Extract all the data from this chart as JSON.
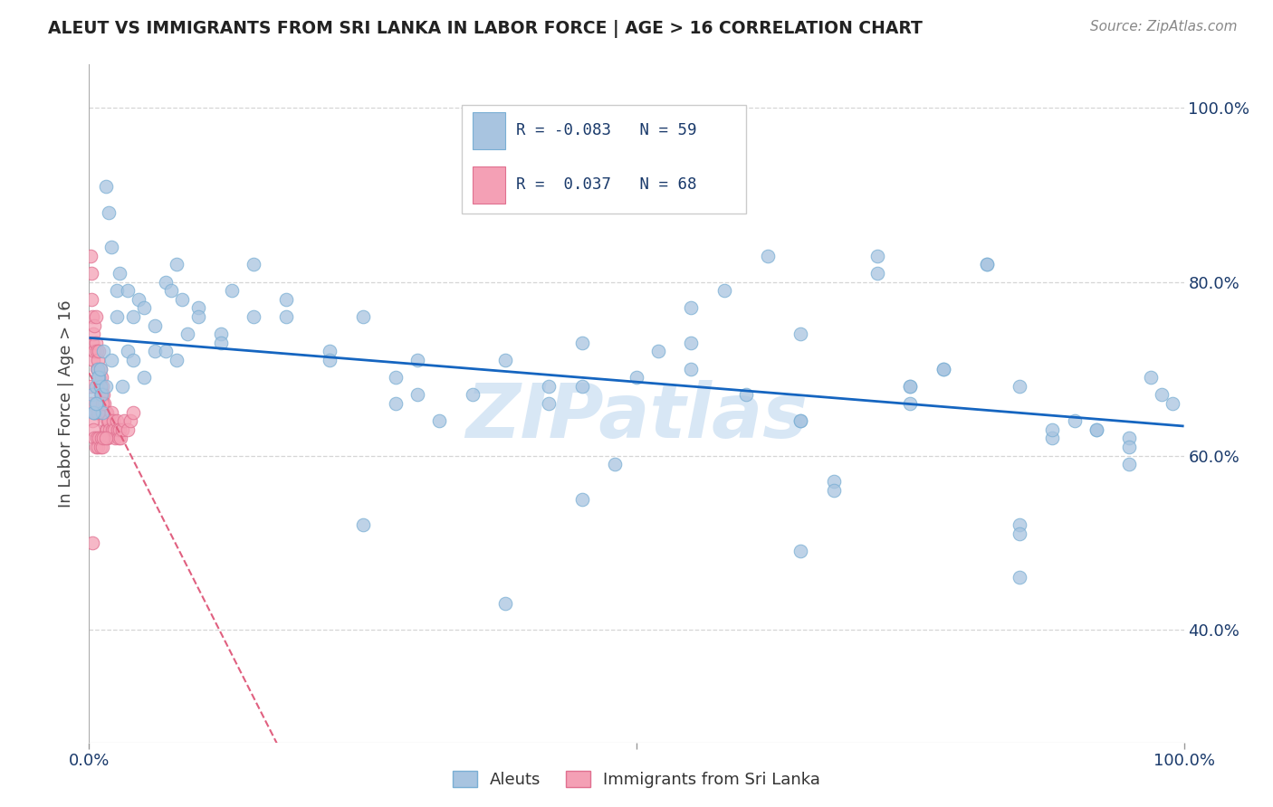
{
  "title": "ALEUT VS IMMIGRANTS FROM SRI LANKA IN LABOR FORCE | AGE > 16 CORRELATION CHART",
  "source": "Source: ZipAtlas.com",
  "ylabel": "In Labor Force | Age > 16",
  "xlim": [
    0.0,
    1.0
  ],
  "ylim": [
    0.27,
    1.05
  ],
  "aleuts_color": "#a8c4e0",
  "aleuts_edge_color": "#7aafd4",
  "aleuts_line_color": "#1565c0",
  "sri_lanka_color": "#f4a0b5",
  "sri_lanka_edge_color": "#e07090",
  "sri_lanka_line_color": "#e06080",
  "legend_color": "#1a3a6b",
  "watermark": "ZIPatlas",
  "grid_color": "#cccccc",
  "aleuts_x": [
    0.003,
    0.005,
    0.006,
    0.007,
    0.008,
    0.009,
    0.01,
    0.011,
    0.012,
    0.013,
    0.015,
    0.018,
    0.02,
    0.025,
    0.028,
    0.035,
    0.04,
    0.045,
    0.05,
    0.06,
    0.07,
    0.075,
    0.08,
    0.085,
    0.09,
    0.1,
    0.12,
    0.13,
    0.15,
    0.18,
    0.22,
    0.25,
    0.28,
    0.3,
    0.35,
    0.38,
    0.42,
    0.45,
    0.5,
    0.55,
    0.58,
    0.62,
    0.65,
    0.68,
    0.72,
    0.75,
    0.78,
    0.82,
    0.85,
    0.88,
    0.9,
    0.92,
    0.95,
    0.97,
    0.99,
    0.25,
    0.45,
    0.65,
    0.85
  ],
  "aleuts_y": [
    0.67,
    0.65,
    0.68,
    0.66,
    0.7,
    0.69,
    0.68,
    0.67,
    0.65,
    0.72,
    0.91,
    0.88,
    0.84,
    0.79,
    0.81,
    0.79,
    0.76,
    0.78,
    0.77,
    0.75,
    0.8,
    0.79,
    0.82,
    0.78,
    0.74,
    0.77,
    0.74,
    0.79,
    0.82,
    0.78,
    0.72,
    0.76,
    0.69,
    0.71,
    0.67,
    0.71,
    0.68,
    0.73,
    0.69,
    0.77,
    0.79,
    0.83,
    0.64,
    0.57,
    0.83,
    0.68,
    0.7,
    0.82,
    0.52,
    0.62,
    0.64,
    0.63,
    0.62,
    0.69,
    0.66,
    0.52,
    0.55,
    0.49,
    0.46
  ],
  "aleuts_x2": [
    0.004,
    0.006,
    0.008,
    0.01,
    0.015,
    0.02,
    0.025,
    0.03,
    0.035,
    0.04,
    0.05,
    0.06,
    0.07,
    0.08,
    0.1,
    0.12,
    0.15,
    0.18,
    0.22,
    0.28,
    0.32,
    0.38,
    0.42,
    0.48,
    0.52,
    0.55,
    0.6,
    0.65,
    0.68,
    0.72,
    0.75,
    0.78,
    0.82,
    0.85,
    0.88,
    0.92,
    0.95,
    0.98,
    0.3,
    0.45,
    0.55,
    0.65,
    0.75,
    0.85,
    0.95
  ],
  "aleuts_y2": [
    0.65,
    0.66,
    0.69,
    0.7,
    0.68,
    0.71,
    0.76,
    0.68,
    0.72,
    0.71,
    0.69,
    0.72,
    0.72,
    0.71,
    0.76,
    0.73,
    0.76,
    0.76,
    0.71,
    0.66,
    0.64,
    0.43,
    0.66,
    0.59,
    0.72,
    0.7,
    0.67,
    0.64,
    0.56,
    0.81,
    0.68,
    0.7,
    0.82,
    0.51,
    0.63,
    0.63,
    0.59,
    0.67,
    0.67,
    0.68,
    0.73,
    0.74,
    0.66,
    0.68,
    0.61
  ],
  "sri_lanka_x": [
    0.001,
    0.002,
    0.002,
    0.003,
    0.003,
    0.004,
    0.004,
    0.005,
    0.005,
    0.006,
    0.006,
    0.007,
    0.007,
    0.008,
    0.008,
    0.009,
    0.009,
    0.01,
    0.01,
    0.011,
    0.011,
    0.012,
    0.012,
    0.013,
    0.013,
    0.014,
    0.014,
    0.015,
    0.015,
    0.016,
    0.016,
    0.017,
    0.017,
    0.018,
    0.019,
    0.02,
    0.021,
    0.022,
    0.023,
    0.024,
    0.025,
    0.026,
    0.027,
    0.028,
    0.029,
    0.03,
    0.032,
    0.035,
    0.038,
    0.04,
    0.001,
    0.002,
    0.003,
    0.004,
    0.005,
    0.006,
    0.007,
    0.008,
    0.009,
    0.01,
    0.011,
    0.012,
    0.013,
    0.015,
    0.003,
    0.005,
    0.008,
    0.012
  ],
  "sri_lanka_y": [
    0.83,
    0.81,
    0.78,
    0.76,
    0.73,
    0.74,
    0.71,
    0.75,
    0.72,
    0.76,
    0.73,
    0.72,
    0.7,
    0.71,
    0.68,
    0.72,
    0.69,
    0.7,
    0.67,
    0.69,
    0.67,
    0.68,
    0.65,
    0.67,
    0.65,
    0.66,
    0.64,
    0.65,
    0.63,
    0.65,
    0.63,
    0.64,
    0.62,
    0.64,
    0.63,
    0.65,
    0.63,
    0.64,
    0.63,
    0.62,
    0.64,
    0.63,
    0.62,
    0.63,
    0.62,
    0.63,
    0.64,
    0.63,
    0.64,
    0.65,
    0.68,
    0.66,
    0.64,
    0.63,
    0.62,
    0.61,
    0.62,
    0.61,
    0.62,
    0.61,
    0.62,
    0.61,
    0.62,
    0.62,
    0.5,
    0.65,
    0.65,
    0.66
  ]
}
